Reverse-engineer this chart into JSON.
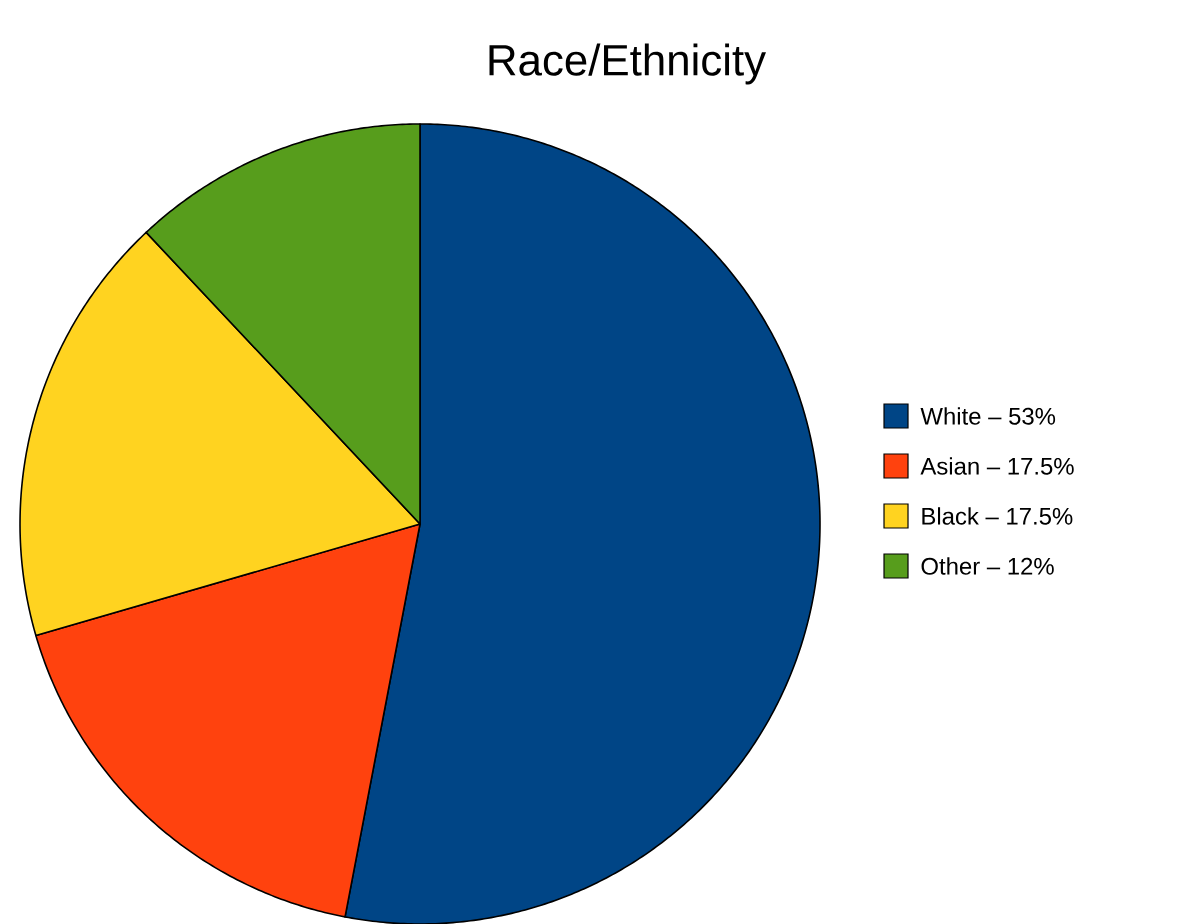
{
  "chart_data": {
    "type": "pie",
    "title": "Race/Ethnicity",
    "categories": [
      "White – 53%",
      "Asian – 17.5%",
      "Black – 17.5%",
      "Other – 12%"
    ],
    "values": [
      53,
      17.5,
      17.5,
      12
    ],
    "colors": [
      "#004586",
      "#ff420e",
      "#ffd320",
      "#579d1c"
    ],
    "legend": "right"
  }
}
